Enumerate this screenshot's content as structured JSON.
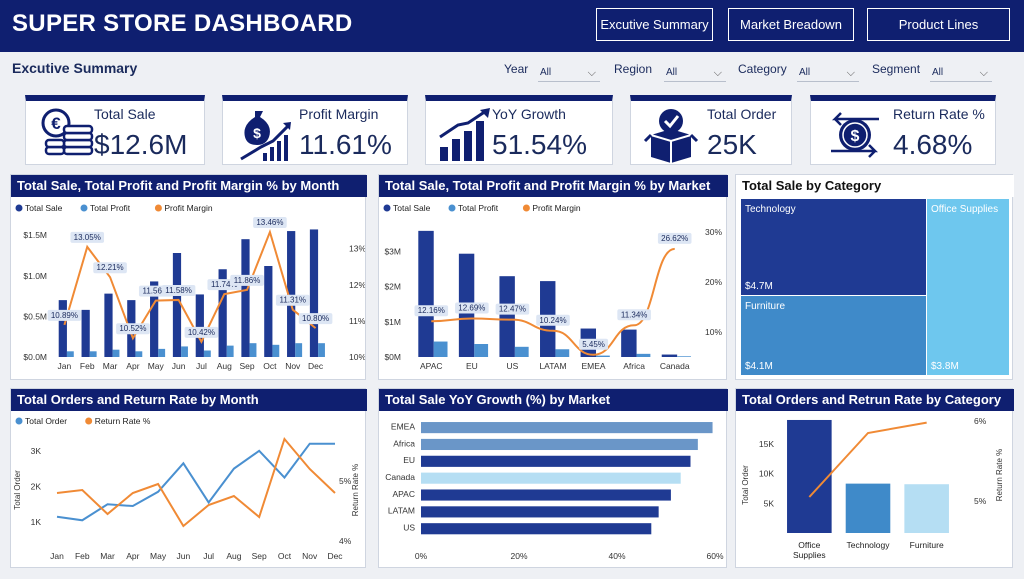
{
  "header": {
    "title": "SUPER STORE DASHBOARD",
    "nav": [
      "Excutive Summary",
      "Market Breadown",
      "Product Lines"
    ]
  },
  "subheader": {
    "title": "Excutive Summary",
    "filters": [
      {
        "label": "Year",
        "value": "All"
      },
      {
        "label": "Region",
        "value": "All"
      },
      {
        "label": "Category",
        "value": "All"
      },
      {
        "label": "Segment",
        "value": "All"
      }
    ]
  },
  "kpis": [
    {
      "label": "Total Sale",
      "value": "$12.6M",
      "icon": "coins-icon"
    },
    {
      "label": "Profit Margin",
      "value": "11.61%",
      "icon": "money-growth-icon"
    },
    {
      "label": "YoY Growth",
      "value": "51.54%",
      "icon": "bar-growth-icon"
    },
    {
      "label": "Total Order",
      "value": "25K",
      "icon": "order-box-icon"
    },
    {
      "label": "Return Rate %",
      "value": "4.68%",
      "icon": "return-money-icon"
    }
  ],
  "colors": {
    "primary": "#0f1f70",
    "dark_bar": "#1f3a93",
    "light_bar": "#4a90d0",
    "orange": "#f08a35",
    "bg": "#eef0f4"
  },
  "chart_data": [
    {
      "id": "month",
      "type": "bar",
      "title": "Total Sale, Total Profit and Profit Margin % by Month",
      "legend": [
        "Total Sale",
        "Total Profit",
        "Profit Margin"
      ],
      "categories": [
        "Jan",
        "Feb",
        "Mar",
        "Apr",
        "May",
        "Jun",
        "Jul",
        "Aug",
        "Sep",
        "Oct",
        "Nov",
        "Dec"
      ],
      "series": [
        {
          "name": "Total Sale",
          "values": [
            0.7,
            0.58,
            0.78,
            0.7,
            0.93,
            1.28,
            0.77,
            1.08,
            1.45,
            1.12,
            1.55,
            1.57
          ]
        },
        {
          "name": "Total Profit",
          "values": [
            0.07,
            0.07,
            0.09,
            0.07,
            0.1,
            0.13,
            0.08,
            0.14,
            0.17,
            0.15,
            0.17,
            0.17
          ]
        },
        {
          "name": "Profit Margin",
          "values": [
            10.89,
            13.05,
            12.21,
            10.52,
            11.56,
            11.58,
            10.42,
            11.74,
            11.86,
            13.46,
            11.31,
            10.8
          ]
        }
      ],
      "y_ticks": [
        "$0.0M",
        "$0.5M",
        "$1.0M",
        "$1.5M"
      ],
      "y_max": 1.6,
      "y2_ticks": [
        "10%",
        "11%",
        "12%",
        "13%"
      ],
      "y2_range": [
        10,
        13.6
      ]
    },
    {
      "id": "market",
      "type": "bar",
      "title": "Total Sale, Total Profit and Profit Margin % by Market",
      "legend": [
        "Total Sale",
        "Total Profit",
        "Profit Margin"
      ],
      "categories": [
        "APAC",
        "EU",
        "US",
        "LATAM",
        "EMEA",
        "Africa",
        "Canada"
      ],
      "series": [
        {
          "name": "Total Sale",
          "values": [
            3.59,
            2.94,
            2.3,
            2.16,
            0.81,
            0.78,
            0.07
          ]
        },
        {
          "name": "Total Profit",
          "values": [
            0.44,
            0.37,
            0.29,
            0.22,
            0.04,
            0.09,
            0.02
          ]
        },
        {
          "name": "Profit Margin",
          "values": [
            12.16,
            12.69,
            12.47,
            10.24,
            5.45,
            11.34,
            26.62
          ]
        }
      ],
      "y_ticks": [
        "$0M",
        "$1M",
        "$2M",
        "$3M"
      ],
      "y_max": 3.7,
      "y2_ticks": [
        "10%",
        "20%",
        "30%"
      ],
      "y2_range": [
        5,
        31
      ]
    },
    {
      "id": "category",
      "type": "treemap",
      "title": "Total Sale by Category",
      "items": [
        {
          "name": "Technology",
          "value": "$4.7M"
        },
        {
          "name": "Furniture",
          "value": "$4.1M"
        },
        {
          "name": "Office Supplies",
          "value": "$3.8M"
        }
      ]
    },
    {
      "id": "orders_month",
      "type": "line",
      "title": "Total Orders and Return Rate by Month",
      "legend": [
        "Total Order",
        "Return Rate %"
      ],
      "categories": [
        "Jan",
        "Feb",
        "Mar",
        "Apr",
        "May",
        "Jun",
        "Jul",
        "Aug",
        "Sep",
        "Oct",
        "Nov",
        "Dec"
      ],
      "series": [
        {
          "name": "Total Order",
          "values": [
            1150,
            1050,
            1500,
            1450,
            1850,
            2650,
            1550,
            2500,
            3000,
            2250,
            3200,
            3200
          ]
        },
        {
          "name": "Return Rate %",
          "values": [
            4.8,
            4.85,
            4.45,
            4.8,
            4.95,
            4.25,
            4.6,
            4.75,
            4.4,
            5.7,
            5.2,
            4.8
          ]
        }
      ],
      "ylabel": "Total Order",
      "y2label": "Return Rate %",
      "y_ticks": [
        "1K",
        "2K",
        "3K"
      ],
      "y_range": [
        300,
        3500
      ],
      "y2_ticks": [
        "4%",
        "5%"
      ],
      "y2_range": [
        3.9,
        5.8
      ]
    },
    {
      "id": "yoy",
      "type": "bar",
      "orientation": "horizontal",
      "title": "Total Sale YoY Growth (%) by Market",
      "categories": [
        "EMEA",
        "Africa",
        "EU",
        "Canada",
        "APAC",
        "LATAM",
        "US"
      ],
      "values": [
        59.5,
        56.5,
        55.0,
        53.0,
        51.0,
        48.5,
        47.0
      ],
      "x_ticks": [
        "0%",
        "20%",
        "40%",
        "60%"
      ],
      "x_max": 60
    },
    {
      "id": "orders_category",
      "type": "bar",
      "title": "Total Orders and Retrun Rate by Category",
      "categories": [
        "Office Supplies",
        "Technology",
        "Furniture"
      ],
      "series": [
        {
          "name": "Total Order",
          "values": [
            19000,
            8300,
            8200
          ]
        },
        {
          "name": "Return Rate %",
          "values": [
            5.05,
            5.85,
            5.98
          ]
        }
      ],
      "ylabel": "Total Order",
      "y2label": "Return Rate %",
      "y_ticks": [
        "5K",
        "10K",
        "15K"
      ],
      "y_max": 19500,
      "y2_ticks": [
        "5%",
        "6%"
      ],
      "y2_range": [
        4.6,
        6.05
      ]
    }
  ]
}
